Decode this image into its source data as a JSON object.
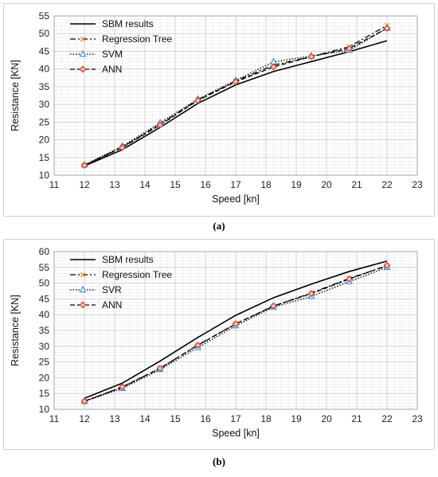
{
  "captions": {
    "a": "(a)",
    "b": "(b)"
  },
  "chart_data": [
    {
      "type": "line",
      "panel": "a",
      "title": "",
      "xlabel": "Speed [kn]",
      "ylabel": "Resistance [KN]",
      "xlim": [
        11,
        23
      ],
      "ylim": [
        10,
        55
      ],
      "xticks": [
        11,
        12,
        13,
        14,
        15,
        16,
        17,
        18,
        19,
        20,
        21,
        22,
        23
      ],
      "yticks": [
        10,
        15,
        20,
        25,
        30,
        35,
        40,
        45,
        50,
        55
      ],
      "grid": true,
      "legend_position": "top-left",
      "x": [
        12,
        13.25,
        14.5,
        15.75,
        17,
        18.25,
        19.5,
        20.75,
        22
      ],
      "series": [
        {
          "name": "SBM results",
          "values": [
            12.6,
            17.2,
            23.5,
            30.3,
            35.5,
            39.3,
            42.1,
            44.9,
            48.0
          ],
          "color": "#000000",
          "dash": "solid",
          "marker": "none"
        },
        {
          "name": "Regression Tree",
          "values": [
            12.8,
            17.9,
            24.4,
            31.3,
            36.6,
            41.1,
            43.5,
            46.3,
            52.3
          ],
          "color": "#000000",
          "dash": "dashdot",
          "marker": "x",
          "marker_color": "#e8a33c"
        },
        {
          "name": "SVM",
          "values": [
            12.9,
            18.2,
            24.8,
            31.5,
            36.8,
            42.0,
            43.7,
            45.3,
            51.5
          ],
          "color": "#000000",
          "dash": "dotted",
          "marker": "triangle",
          "marker_color": "#3a8fd0"
        },
        {
          "name": "ANN",
          "values": [
            12.8,
            17.8,
            24.2,
            31.1,
            36.4,
            40.6,
            43.5,
            45.8,
            51.5
          ],
          "color": "#000000",
          "dash": "dashed",
          "marker": "diamond",
          "marker_color": "#d93a2b"
        }
      ]
    },
    {
      "type": "line",
      "panel": "b",
      "title": "",
      "xlabel": "Speed [kn]",
      "ylabel": "Resistance [KN]",
      "xlim": [
        11,
        23
      ],
      "ylim": [
        10,
        60
      ],
      "xticks": [
        11,
        12,
        13,
        14,
        15,
        16,
        17,
        18,
        19,
        20,
        21,
        22,
        23
      ],
      "yticks": [
        10,
        15,
        20,
        25,
        30,
        35,
        40,
        45,
        50,
        55,
        60
      ],
      "grid": true,
      "legend_position": "top-left",
      "x": [
        12,
        13.25,
        14.5,
        15.75,
        17,
        18.25,
        19.5,
        20.75,
        22
      ],
      "series": [
        {
          "name": "SBM results",
          "values": [
            13.5,
            18.3,
            25.3,
            32.8,
            39.8,
            45.4,
            49.7,
            53.7,
            57.0
          ],
          "color": "#000000",
          "dash": "solid",
          "marker": "none"
        },
        {
          "name": "Regression Tree",
          "values": [
            12.6,
            17.0,
            23.0,
            30.4,
            37.1,
            42.7,
            46.9,
            51.5,
            55.5
          ],
          "color": "#000000",
          "dash": "dashdot",
          "marker": "x",
          "marker_color": "#e8a33c"
        },
        {
          "name": "SVR",
          "values": [
            12.5,
            16.6,
            22.6,
            29.6,
            36.5,
            42.4,
            45.8,
            50.5,
            55.0
          ],
          "color": "#000000",
          "dash": "dotted",
          "marker": "triangle",
          "marker_color": "#3a8fd0"
        },
        {
          "name": "ANN",
          "values": [
            12.5,
            17.1,
            23.0,
            30.3,
            37.1,
            42.8,
            46.7,
            51.3,
            55.6
          ],
          "color": "#000000",
          "dash": "dashed",
          "marker": "diamond",
          "marker_color": "#d93a2b"
        }
      ]
    }
  ]
}
